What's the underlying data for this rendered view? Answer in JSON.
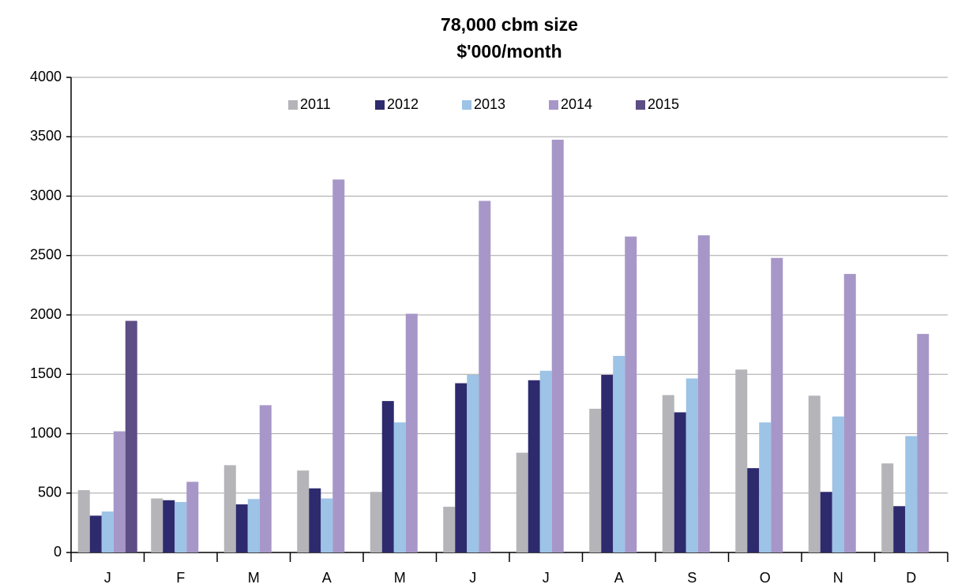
{
  "chart_data": {
    "type": "bar",
    "title": "78,000 cbm size",
    "subtitle": "$'000/month",
    "categories": [
      "J",
      "F",
      "M",
      "A",
      "M",
      "J",
      "J",
      "A",
      "S",
      "O",
      "N",
      "D"
    ],
    "series": [
      {
        "name": "2011",
        "color": "#b4b4b9",
        "values": [
          525,
          455,
          735,
          690,
          510,
          385,
          840,
          1210,
          1325,
          1540,
          1320,
          750
        ]
      },
      {
        "name": "2012",
        "color": "#2e2a6e",
        "values": [
          310,
          440,
          405,
          540,
          1275,
          1425,
          1450,
          1495,
          1180,
          710,
          510,
          390
        ]
      },
      {
        "name": "2013",
        "color": "#9dc3e6",
        "values": [
          345,
          425,
          450,
          455,
          1095,
          1495,
          1530,
          1655,
          1465,
          1095,
          1145,
          980
        ]
      },
      {
        "name": "2014",
        "color": "#a797c8",
        "values": [
          1020,
          595,
          1240,
          3140,
          2010,
          2960,
          3475,
          2660,
          2670,
          2480,
          2345,
          1840
        ]
      },
      {
        "name": "2015",
        "color": "#5d4e85",
        "values": [
          1950,
          null,
          null,
          null,
          null,
          null,
          null,
          null,
          null,
          null,
          null,
          null
        ]
      }
    ],
    "ylim": [
      0,
      4000
    ],
    "yticks": [
      0,
      500,
      1000,
      1500,
      2000,
      2500,
      3000,
      3500,
      4000
    ],
    "grid": true,
    "legend": "top"
  }
}
